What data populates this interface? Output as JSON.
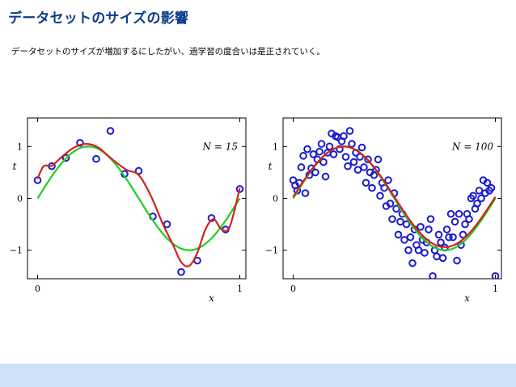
{
  "slide": {
    "title": "データセットのサイズの影響",
    "subtitle": "データセットのサイズが増加するにしたがい、過学習の度合いは是正されていく。"
  },
  "colors": {
    "title": "#0a3d8c",
    "points": "#1a1ad0",
    "true_curve": "#22cc22",
    "fit_curve": "#d42020",
    "footer": "#cfe0f7"
  },
  "chart_data": [
    {
      "type": "scatter",
      "annotation": "N = 15",
      "ylabel": "t",
      "xlabel": "x",
      "xlim": [
        -0.05,
        1.03
      ],
      "ylim": [
        -1.55,
        1.55
      ],
      "xticks": [
        "0",
        "1"
      ],
      "yticks": [
        "1",
        "0",
        "−1"
      ],
      "series": [
        {
          "kind": "points",
          "x": [
            0.0,
            0.07,
            0.14,
            0.21,
            0.29,
            0.36,
            0.43,
            0.5,
            0.57,
            0.64,
            0.71,
            0.79,
            0.86,
            0.93,
            1.0
          ],
          "y": [
            0.35,
            0.62,
            0.78,
            1.07,
            0.76,
            1.3,
            0.47,
            0.53,
            -0.35,
            -0.5,
            -1.42,
            -1.2,
            -0.38,
            -0.6,
            0.18
          ]
        },
        {
          "kind": "true-curve",
          "function": "sin(2*pi*x)"
        },
        {
          "kind": "fit-curve",
          "x": [
            0.0,
            0.03,
            0.07,
            0.12,
            0.18,
            0.24,
            0.3,
            0.37,
            0.44,
            0.5,
            0.56,
            0.62,
            0.67,
            0.71,
            0.75,
            0.79,
            0.83,
            0.87,
            0.91,
            0.95,
            1.0
          ],
          "y": [
            0.38,
            0.62,
            0.63,
            0.8,
            0.98,
            1.05,
            0.98,
            0.75,
            0.55,
            0.45,
            0.05,
            -0.5,
            -0.9,
            -1.23,
            -1.3,
            -1.05,
            -0.6,
            -0.4,
            -0.6,
            -0.55,
            0.2
          ]
        }
      ]
    },
    {
      "type": "scatter",
      "annotation": "N = 100",
      "ylabel": "t",
      "xlabel": "x",
      "xlim": [
        -0.05,
        1.03
      ],
      "ylim": [
        -1.55,
        1.55
      ],
      "xticks": [
        "0",
        "1"
      ],
      "yticks": [
        "1",
        "0",
        "−1"
      ],
      "series": [
        {
          "kind": "points",
          "x": [
            0.0,
            0.01,
            0.02,
            0.03,
            0.04,
            0.05,
            0.06,
            0.07,
            0.08,
            0.09,
            0.1,
            0.11,
            0.12,
            0.13,
            0.14,
            0.15,
            0.16,
            0.17,
            0.18,
            0.19,
            0.2,
            0.21,
            0.22,
            0.23,
            0.24,
            0.25,
            0.26,
            0.27,
            0.28,
            0.29,
            0.3,
            0.31,
            0.32,
            0.33,
            0.34,
            0.35,
            0.36,
            0.37,
            0.38,
            0.39,
            0.4,
            0.41,
            0.42,
            0.43,
            0.44,
            0.45,
            0.46,
            0.47,
            0.48,
            0.49,
            0.5,
            0.51,
            0.52,
            0.53,
            0.54,
            0.55,
            0.56,
            0.57,
            0.58,
            0.59,
            0.6,
            0.61,
            0.62,
            0.63,
            0.64,
            0.65,
            0.66,
            0.67,
            0.68,
            0.69,
            0.7,
            0.71,
            0.72,
            0.73,
            0.74,
            0.75,
            0.76,
            0.77,
            0.78,
            0.79,
            0.8,
            0.81,
            0.82,
            0.83,
            0.84,
            0.85,
            0.86,
            0.87,
            0.88,
            0.89,
            0.9,
            0.91,
            0.92,
            0.93,
            0.94,
            0.95,
            0.96,
            0.97,
            0.98,
            1.0
          ],
          "y": [
            0.35,
            0.25,
            0.15,
            0.3,
            0.6,
            0.82,
            0.1,
            0.95,
            0.45,
            0.58,
            0.85,
            0.5,
            0.75,
            0.9,
            1.05,
            0.7,
            0.42,
            0.88,
            1.0,
            1.25,
            0.85,
            1.2,
            1.18,
            0.95,
            1.1,
            1.2,
            0.8,
            0.62,
            1.3,
            1.05,
            0.7,
            0.88,
            0.55,
            0.8,
            0.98,
            0.6,
            0.3,
            0.75,
            0.5,
            0.2,
            0.45,
            0.55,
            0.75,
            0.05,
            0.3,
            0.2,
            -0.15,
            0.35,
            -0.1,
            -0.4,
            0.1,
            -0.2,
            -0.7,
            -0.45,
            -0.3,
            -0.8,
            -0.5,
            -1.0,
            -0.75,
            -1.25,
            -0.6,
            -0.9,
            -1.0,
            -0.55,
            -0.8,
            -1.05,
            -0.85,
            -0.6,
            -0.4,
            -1.5,
            -1.0,
            -1.12,
            -0.7,
            -0.85,
            -1.15,
            -0.95,
            -0.6,
            -0.75,
            -0.3,
            -0.75,
            -0.45,
            -1.2,
            -0.3,
            -0.9,
            -0.7,
            -0.5,
            -0.3,
            -0.4,
            0.0,
            0.05,
            -0.2,
            -0.1,
            0.15,
            0.0,
            0.35,
            0.1,
            0.3,
            0.15,
            0.2,
            -1.5
          ]
        },
        {
          "kind": "true-curve",
          "function": "sin(2*pi*x)"
        },
        {
          "kind": "fit-curve",
          "function": "0.97*sin(2*pi*x)+0.03"
        }
      ]
    }
  ]
}
